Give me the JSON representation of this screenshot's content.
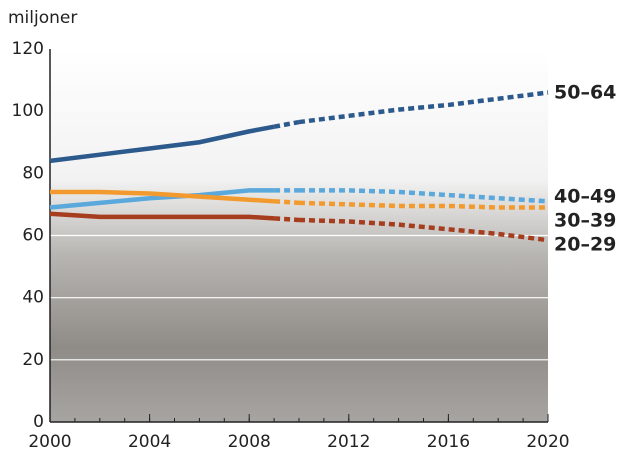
{
  "chart_data": {
    "type": "line",
    "y_label": "miljoner",
    "x": [
      2000,
      2002,
      2004,
      2006,
      2008,
      2009,
      2010,
      2012,
      2014,
      2016,
      2018,
      2020
    ],
    "series": [
      {
        "name": "50–64",
        "color": "#2d5a8c",
        "values": [
          84,
          86,
          88,
          90,
          93.5,
          95,
          96.5,
          98.5,
          100.5,
          102,
          104,
          106
        ]
      },
      {
        "name": "40–49",
        "color": "#5ba8dc",
        "values": [
          69,
          70.5,
          72,
          73,
          74.5,
          74.5,
          74.5,
          74.5,
          74,
          73,
          72,
          71
        ]
      },
      {
        "name": "30–39",
        "color": "#f39a2e",
        "values": [
          74,
          74,
          73.5,
          72.5,
          71.5,
          71,
          70.5,
          70,
          69.5,
          69.5,
          69,
          69
        ]
      },
      {
        "name": "20–29",
        "color": "#a63d1e",
        "values": [
          67,
          66,
          66,
          66,
          66,
          65.5,
          65,
          64.5,
          63.5,
          62,
          60.5,
          58.5
        ]
      }
    ],
    "forecast_from": 2009,
    "xlim": [
      2000,
      2020
    ],
    "xticks": [
      2000,
      2004,
      2008,
      2012,
      2016,
      2020
    ],
    "ylim": [
      0,
      120
    ],
    "yticks": [
      0,
      20,
      40,
      60,
      80,
      100,
      120
    ],
    "grid": true
  }
}
